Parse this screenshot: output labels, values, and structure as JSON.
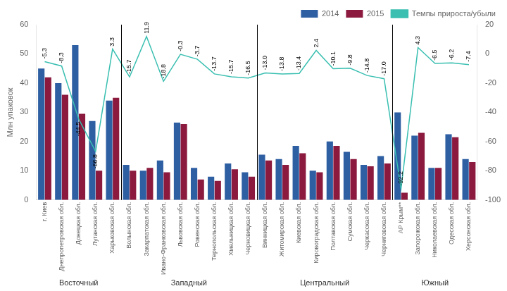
{
  "chart_data": {
    "type": "bar",
    "categories": [
      "г. Киев",
      "Днепропетровская обл.",
      "Донецкая обл.",
      "Луганская обл.",
      "Харьковская обл.",
      "Волынская обл.",
      "Закарпатская обл.",
      "Ивано-Франковская обл.",
      "Львовская обл.",
      "Ровенская обл.",
      "Тернопольская обл.",
      "Хмельницкая обл.",
      "Черновицкая обл.",
      "Винницкая обл.",
      "Житомирская обл.",
      "Киевская обл.",
      "Кировоградская обл.",
      "Полтавская обл.",
      "Сумская обл.",
      "Черкасская обл.",
      "Черниговская обл.",
      "АР Крым**",
      "Запорожская обл.",
      "Николаевская обл.",
      "Одесская обл.",
      "Херсонская обл."
    ],
    "series": [
      {
        "name": "2014",
        "color": "#2E5FA3",
        "values": [
          45,
          40,
          53,
          27,
          34,
          12,
          10,
          13.5,
          26.5,
          11,
          8,
          12.5,
          9.5,
          15.5,
          14,
          18.5,
          10,
          20,
          16.5,
          12,
          15,
          30,
          22,
          11,
          22.5,
          14
        ]
      },
      {
        "name": "2015",
        "color": "#8B1A3E",
        "values": [
          42,
          36,
          29.5,
          10,
          35,
          10,
          11,
          9.5,
          26,
          7,
          6.5,
          10.5,
          8,
          13.5,
          12,
          16,
          9.5,
          18.5,
          14,
          11.5,
          12.5,
          2.5,
          23,
          11,
          21.5,
          13
        ]
      },
      {
        "name": "Темпы прироста/убыли",
        "type": "line",
        "axis": "y2",
        "color": "#3ABFB1",
        "data_labels": true,
        "values": [
          -5.3,
          -8.3,
          -44.5,
          -66.8,
          3.3,
          -15.7,
          11.9,
          -18.8,
          -0.3,
          -3.7,
          -13.7,
          -15.7,
          -16.5,
          -13.0,
          -13.8,
          -13.4,
          2.4,
          -10.1,
          -9.8,
          -14.8,
          -17.0,
          -92.2,
          4.3,
          -6.5,
          -6.2,
          -7.4
        ],
        "value_labels": [
          "-5.3",
          "-8.3",
          "-44.5",
          "-66.8",
          "3.3",
          "-15.7",
          "11.9",
          "-18.8",
          "-0.3",
          "-3.7",
          "-13.7",
          "-15.7",
          "-16.5",
          "-13.0",
          "-13.8",
          "-13.4",
          "2.4",
          "-10.1",
          "-9.8",
          "-14.8",
          "-17.0",
          "-92.2",
          "4.3",
          "-6.5",
          "-6.2",
          "-7.4"
        ]
      }
    ],
    "ylabel": "Млн упаковок",
    "ylim": [
      0,
      60
    ],
    "yticks": [
      0,
      10,
      20,
      30,
      40,
      50,
      60
    ],
    "y2lim": [
      -100,
      20
    ],
    "y2ticks": [
      -100,
      -80,
      -60,
      -40,
      -20,
      0,
      20
    ],
    "grid": false,
    "legend": "upper right",
    "groups": [
      {
        "name": "Восточный",
        "first": "г. Киев",
        "last": "Харьковская обл."
      },
      {
        "name": "Западный",
        "first": "Волынская обл.",
        "last": "Черновицкая обл."
      },
      {
        "name": "Центральный",
        "first": "Винницкая обл.",
        "last": "Черниговская обл."
      },
      {
        "name": "Южный",
        "first": "АР Крым**",
        "last": "Херсонская обл."
      }
    ]
  }
}
